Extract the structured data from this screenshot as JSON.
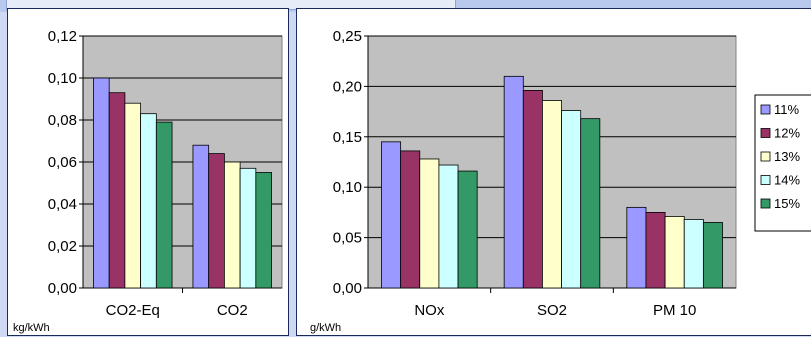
{
  "colors": {
    "plot_bg": "#c0c0c0",
    "series": [
      "#9999ff",
      "#993366",
      "#ffffcc",
      "#ccffff",
      "#339966"
    ]
  },
  "chart_data": [
    {
      "type": "bar",
      "categories": [
        "CO2-Eq",
        "CO2"
      ],
      "unit": "kg/kWh",
      "ylim": [
        0,
        0.12
      ],
      "yticks": [
        "0,00",
        "0,02",
        "0,04",
        "0,06",
        "0,08",
        "0,10",
        "0,12"
      ],
      "grid": true,
      "series": [
        {
          "name": "11%",
          "values": [
            0.1,
            0.068
          ]
        },
        {
          "name": "12%",
          "values": [
            0.093,
            0.064
          ]
        },
        {
          "name": "13%",
          "values": [
            0.088,
            0.06
          ]
        },
        {
          "name": "14%",
          "values": [
            0.083,
            0.057
          ]
        },
        {
          "name": "15%",
          "values": [
            0.079,
            0.055
          ]
        }
      ]
    },
    {
      "type": "bar",
      "categories": [
        "NOx",
        "SO2",
        "PM 10"
      ],
      "unit": "g/kWh",
      "ylim": [
        0,
        0.25
      ],
      "yticks": [
        "0,00",
        "0,05",
        "0,10",
        "0,15",
        "0,20",
        "0,25"
      ],
      "grid": true,
      "legend_position": "right",
      "series": [
        {
          "name": "11%",
          "values": [
            0.145,
            0.21,
            0.08
          ]
        },
        {
          "name": "12%",
          "values": [
            0.136,
            0.196,
            0.075
          ]
        },
        {
          "name": "13%",
          "values": [
            0.128,
            0.186,
            0.071
          ]
        },
        {
          "name": "14%",
          "values": [
            0.122,
            0.176,
            0.068
          ]
        },
        {
          "name": "15%",
          "values": [
            0.116,
            0.168,
            0.065
          ]
        }
      ]
    }
  ]
}
